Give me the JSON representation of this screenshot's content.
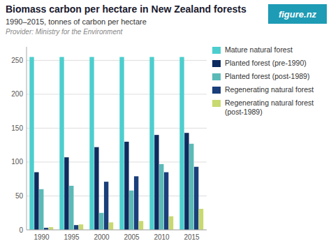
{
  "chart_data": {
    "type": "bar",
    "title": "Biomass carbon per hectare in New Zealand forests",
    "subtitle": "1990–2015, tonnes of carbon per hectare",
    "annotations": [
      "Provider: Ministry for the Environment",
      "figure.nz"
    ],
    "categories": [
      "1990",
      "1995",
      "2000",
      "2005",
      "2010",
      "2015"
    ],
    "series": [
      {
        "name": "Mature natural forest",
        "color": "#4DCECE",
        "values": [
          255,
          255,
          255,
          255,
          255,
          255
        ]
      },
      {
        "name": "Planted forest (pre-1990)",
        "color": "#0D2B5E",
        "values": [
          85,
          107,
          122,
          130,
          140,
          143
        ]
      },
      {
        "name": "Planted forest (post-1989)",
        "color": "#5BBAB6",
        "values": [
          60,
          65,
          25,
          58,
          97,
          127
        ]
      },
      {
        "name": "Regenerating natural forest",
        "color": "#1A3F7A",
        "values": [
          3,
          7,
          71,
          79,
          85,
          93
        ]
      },
      {
        "name": "Regenerating natural forest (post-1989)",
        "color": "#C8D96F",
        "values": [
          4,
          8,
          11,
          13,
          20,
          31
        ]
      }
    ],
    "ylim": [
      0,
      270
    ],
    "yticks": [
      0,
      50,
      100,
      150,
      200,
      250
    ],
    "grid": true,
    "legend": "right"
  }
}
